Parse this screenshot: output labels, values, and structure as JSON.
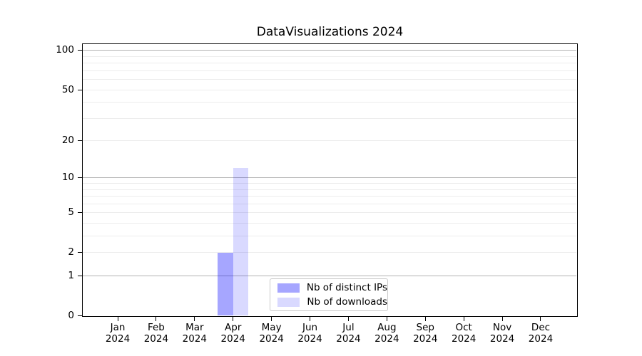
{
  "chart_data": {
    "type": "bar",
    "title": "DataVisualizations 2024",
    "x_months": [
      "Jan",
      "Feb",
      "Mar",
      "Apr",
      "May",
      "Jun",
      "Jul",
      "Aug",
      "Sep",
      "Oct",
      "Nov",
      "Dec"
    ],
    "x_year": "2024",
    "series": [
      {
        "name": "Nb of distinct IPs",
        "color": "rgba(0,0,255,0.35)",
        "values": [
          0,
          0,
          0,
          2,
          0,
          0,
          0,
          0,
          0,
          0,
          0,
          0
        ]
      },
      {
        "name": "Nb of downloads",
        "color": "rgba(0,0,255,0.15)",
        "values": [
          0,
          0,
          0,
          12,
          0,
          0,
          0,
          0,
          0,
          0,
          0,
          0
        ]
      }
    ],
    "yscale": "log10(1+y)",
    "ytick_values": [
      0,
      1,
      2,
      5,
      10,
      20,
      50,
      100
    ],
    "ylim": [
      0,
      114
    ],
    "grid": {
      "major_values": [
        1,
        10,
        100
      ],
      "minor_values": [
        2,
        3,
        4,
        5,
        6,
        7,
        8,
        9,
        20,
        30,
        40,
        50,
        60,
        70,
        80,
        90
      ],
      "major_color": "#b2b2b2",
      "minor_color": "#ececec"
    },
    "legend_position": "lower center"
  }
}
